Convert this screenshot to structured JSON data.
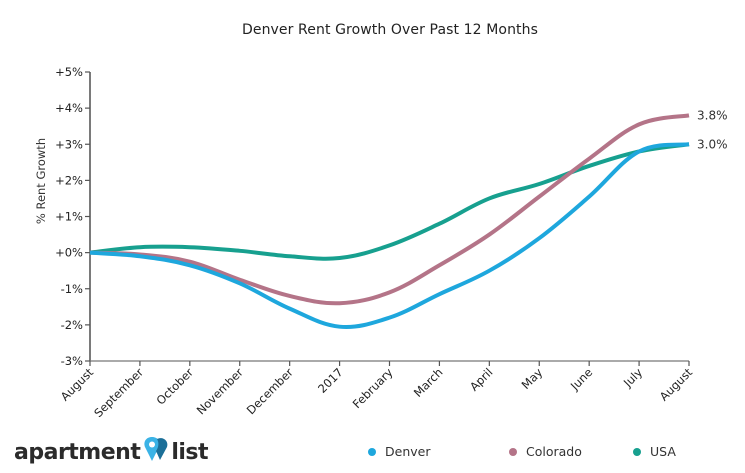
{
  "chart_data": {
    "type": "line",
    "title": "Denver Rent Growth Over Past 12 Months",
    "xlabel": "",
    "ylabel": "% Rent Growth",
    "ylim": [
      -3,
      5
    ],
    "yticks": [
      5,
      4,
      3,
      2,
      1,
      0,
      -1,
      -2,
      -3
    ],
    "ytick_labels": [
      "+5%",
      "+4%",
      "+3%",
      "+2%",
      "+1%",
      "+0%",
      "-1%",
      "-2%",
      "-3%"
    ],
    "categories": [
      "August",
      "September",
      "October",
      "November",
      "December",
      "2017",
      "February",
      "March",
      "April",
      "May",
      "June",
      "July",
      "August"
    ],
    "grid": false,
    "legend_position": "bottom",
    "series": [
      {
        "name": "Denver",
        "color": "#1ea7dd",
        "values": [
          0,
          -0.1,
          -0.35,
          -0.85,
          -1.55,
          -2.05,
          -1.8,
          -1.15,
          -0.5,
          0.4,
          1.55,
          2.8,
          3.0
        ],
        "end_label": "3.0%"
      },
      {
        "name": "Colorado",
        "color": "#b47488",
        "values": [
          0,
          -0.05,
          -0.25,
          -0.75,
          -1.2,
          -1.4,
          -1.1,
          -0.35,
          0.5,
          1.55,
          2.6,
          3.55,
          3.8
        ],
        "end_label": "3.8%"
      },
      {
        "name": "USA",
        "color": "#17a08f",
        "values": [
          0,
          0.15,
          0.15,
          0.05,
          -0.1,
          -0.15,
          0.2,
          0.8,
          1.5,
          1.9,
          2.4,
          2.8,
          3.0
        ],
        "end_label": ""
      }
    ]
  },
  "branding": {
    "logo_left": "apartment",
    "logo_right": "list"
  }
}
